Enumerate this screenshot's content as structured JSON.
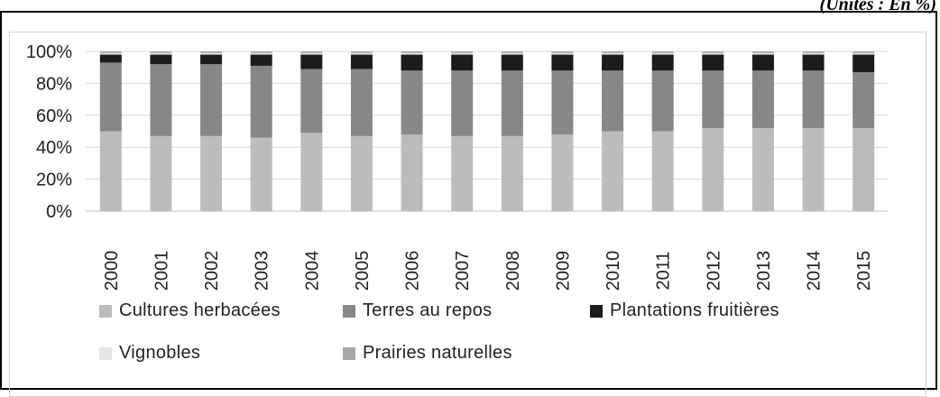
{
  "header": {
    "units_label": "(Unités : En %)"
  },
  "chart_data": {
    "type": "bar",
    "stacked": true,
    "categories": [
      "2000",
      "2001",
      "2002",
      "2003",
      "2004",
      "2005",
      "2006",
      "2007",
      "2008",
      "2009",
      "2010",
      "2011",
      "2012",
      "2013",
      "2014",
      "2015"
    ],
    "y_tick_labels": [
      "0%",
      "20%",
      "40%",
      "60%",
      "80%",
      "100%"
    ],
    "ylim": [
      0,
      100
    ],
    "grid": true,
    "legend_position": "bottom",
    "series": [
      {
        "name": "Cultures herbacées",
        "color": "#bcbcbc",
        "values": [
          50,
          47,
          47,
          46,
          49,
          47,
          48,
          47,
          47,
          48,
          50,
          50,
          52,
          52,
          52,
          52
        ]
      },
      {
        "name": "Terres au repos",
        "color": "#878787",
        "values": [
          43,
          45,
          45,
          45,
          40,
          42,
          40,
          41,
          41,
          40,
          38,
          38,
          36,
          36,
          36,
          35
        ]
      },
      {
        "name": "Plantations fruitières",
        "color": "#1c1c1c",
        "values": [
          5,
          6,
          6,
          7,
          9,
          9,
          10,
          10,
          10,
          10,
          10,
          10,
          10,
          10,
          10,
          11
        ]
      },
      {
        "name": "Vignobles",
        "color": "#e6e6e6",
        "values": [
          1,
          1,
          1,
          1,
          1,
          1,
          1,
          1,
          1,
          1,
          1,
          1,
          1,
          1,
          1,
          1
        ]
      },
      {
        "name": "Prairies naturelles",
        "color": "#a8a8a8",
        "values": [
          1,
          1,
          1,
          1,
          1,
          1,
          1,
          1,
          1,
          1,
          1,
          1,
          1,
          1,
          1,
          1
        ]
      }
    ]
  }
}
